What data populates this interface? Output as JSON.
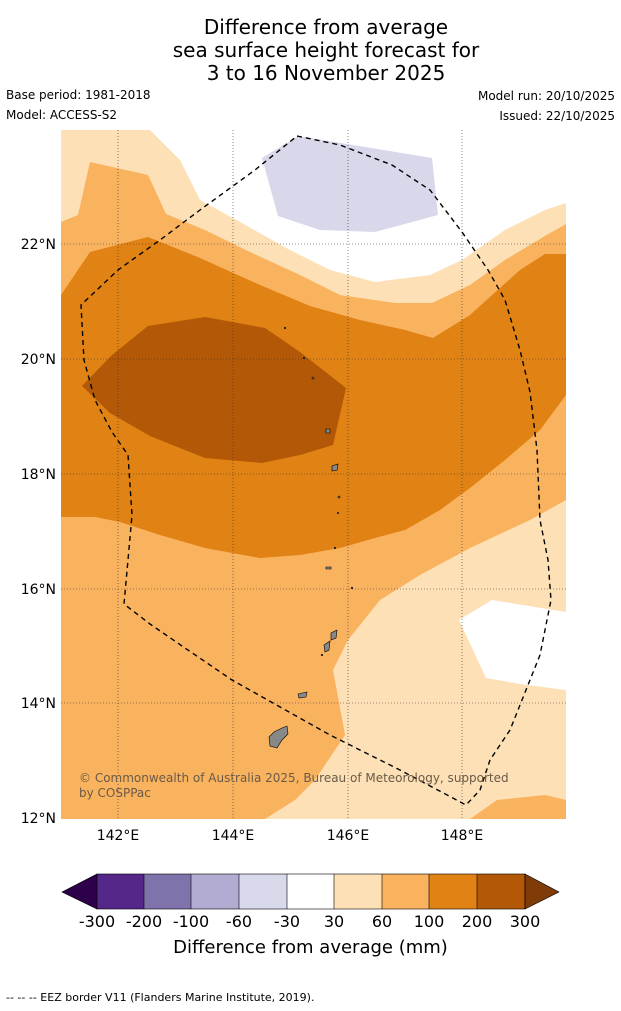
{
  "title": {
    "line1": "Difference from average",
    "line2": "sea surface height forecast for",
    "line3": "3 to 16 November 2025"
  },
  "meta": {
    "base_period": "Base period: 1981-2018",
    "model": "Model: ACCESS-S2",
    "model_run": "Model run: 20/10/2025",
    "issued": "Issued: 22/10/2025"
  },
  "map": {
    "lat_labels": [
      "22°N",
      "20°N",
      "18°N",
      "16°N",
      "14°N",
      "12°N"
    ],
    "lon_labels": [
      "142°E",
      "144°E",
      "146°E",
      "148°E"
    ],
    "copyright": "© Commonwealth of Australia 2025, Bureau of Meteorology, supported by COSPPac"
  },
  "colors": {
    "band_n30_0": "#d8d8ea",
    "band_0_30": "#ffffff",
    "band_30_60": "#fde0b5",
    "band_60_100": "#f9b25e",
    "band_100_200": "#e08214",
    "band_200_300": "#b35806",
    "band_over_300": "#7f3b08"
  },
  "colorbar": {
    "title": "Difference from average (mm)",
    "ticks": [
      "-300",
      "-200",
      "-100",
      "-60",
      "-30",
      "30",
      "60",
      "100",
      "200",
      "300"
    ],
    "colors": [
      "#2d004b",
      "#542788",
      "#8073ac",
      "#b2abd2",
      "#d8daeb",
      "#ffffff",
      "#fee0b6",
      "#f9b25e",
      "#e08214",
      "#b35806",
      "#7f3b08"
    ]
  },
  "footer": "--  --  -- EEZ border V11 (Flanders Marine Institute, 2019)."
}
